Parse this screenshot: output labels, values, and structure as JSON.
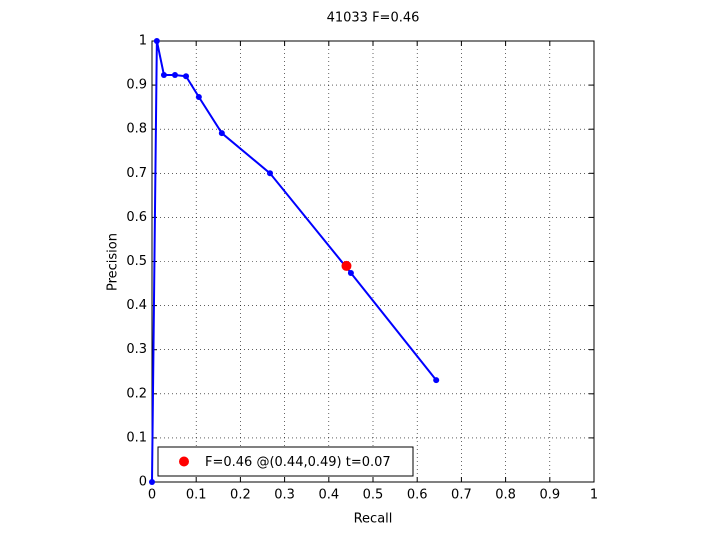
{
  "chart_data": {
    "type": "line",
    "title": "41033 F=0.46",
    "xlabel": "Recall",
    "ylabel": "Precision",
    "xlim": [
      0,
      1
    ],
    "ylim": [
      0,
      1
    ],
    "xticks": [
      0,
      0.1,
      0.2,
      0.3,
      0.4,
      0.5,
      0.6,
      0.7,
      0.8,
      0.9,
      1
    ],
    "yticks": [
      0,
      0.1,
      0.2,
      0.3,
      0.4,
      0.5,
      0.6,
      0.7,
      0.8,
      0.9,
      1
    ],
    "grid": true,
    "legend": "lower left",
    "series": [
      {
        "color": "#0000ff",
        "line": true,
        "x": [
          0,
          0.011,
          0.027,
          0.052,
          0.077,
          0.106,
          0.158,
          0.267,
          0.45,
          0.643
        ],
        "values": [
          0,
          1,
          0.923,
          0.923,
          0.92,
          0.873,
          0.791,
          0.7,
          0.474,
          0.231
        ]
      },
      {
        "name": "F=0.46 @(0.44,0.49) t=0.07",
        "color": "#ff0000",
        "line": false,
        "x": [
          0.44
        ],
        "values": [
          0.49
        ]
      }
    ]
  }
}
